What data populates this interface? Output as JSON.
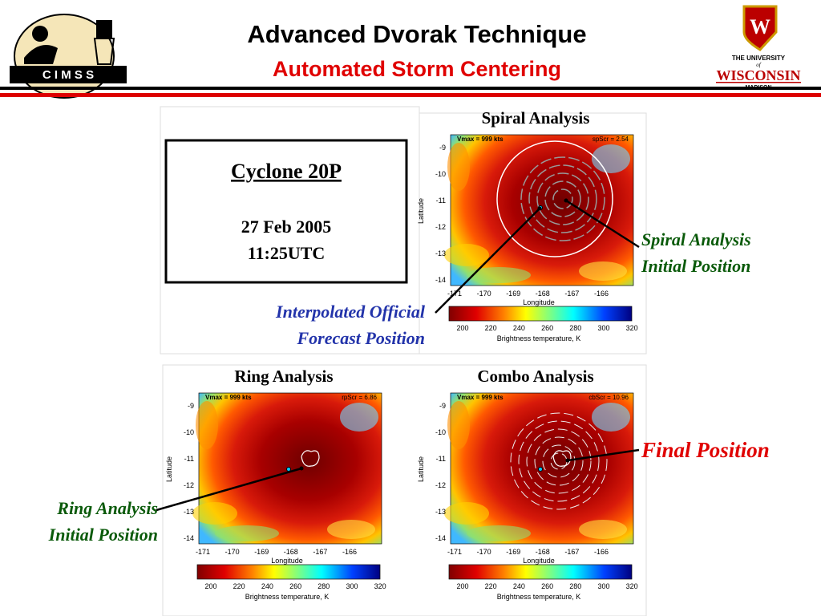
{
  "header": {
    "title": "Advanced Dvorak Technique",
    "subtitle": "Automated Storm Centering"
  },
  "logos": {
    "cimss": "C I M S S",
    "uw": {
      "line1": "THE UNIVERSITY",
      "line2": "of",
      "line3": "WISCONSIN",
      "line4": "MADISON"
    }
  },
  "info_box": {
    "name": "Cyclone 20P",
    "date": "27 Feb 2005",
    "time": "11:25UTC"
  },
  "plot_axes": {
    "yticks": [
      -9,
      -10,
      -11,
      -12,
      -13,
      -14
    ],
    "xticks": [
      -171,
      -170,
      -169,
      -168,
      -167,
      -166
    ],
    "ylabel": "Latitude",
    "xlabel": "Longitude",
    "colorbar_ticks": [
      200,
      220,
      240,
      260,
      280,
      300,
      320
    ],
    "colorbar_label": "Brightness temperature, K"
  },
  "panels": [
    {
      "title": "Spiral Analysis",
      "vmax": "Vmax = 999 kts",
      "score": "spScr = 2.54"
    },
    {
      "title": "Ring Analysis",
      "vmax": "Vmax = 999 kts",
      "score": "rpScr = 6.86"
    },
    {
      "title": "Combo Analysis",
      "vmax": "Vmax = 999 kts",
      "score": "cbScr = 10.96"
    }
  ],
  "annotations": [
    {
      "lines": [
        "Interpolated Official",
        "Forecast Position"
      ]
    },
    {
      "lines": [
        "Spiral Analysis",
        "Initial Position"
      ]
    },
    {
      "lines": [
        "Ring Analysis",
        "Initial Position"
      ]
    },
    {
      "lines": [
        "Final Position"
      ]
    }
  ]
}
